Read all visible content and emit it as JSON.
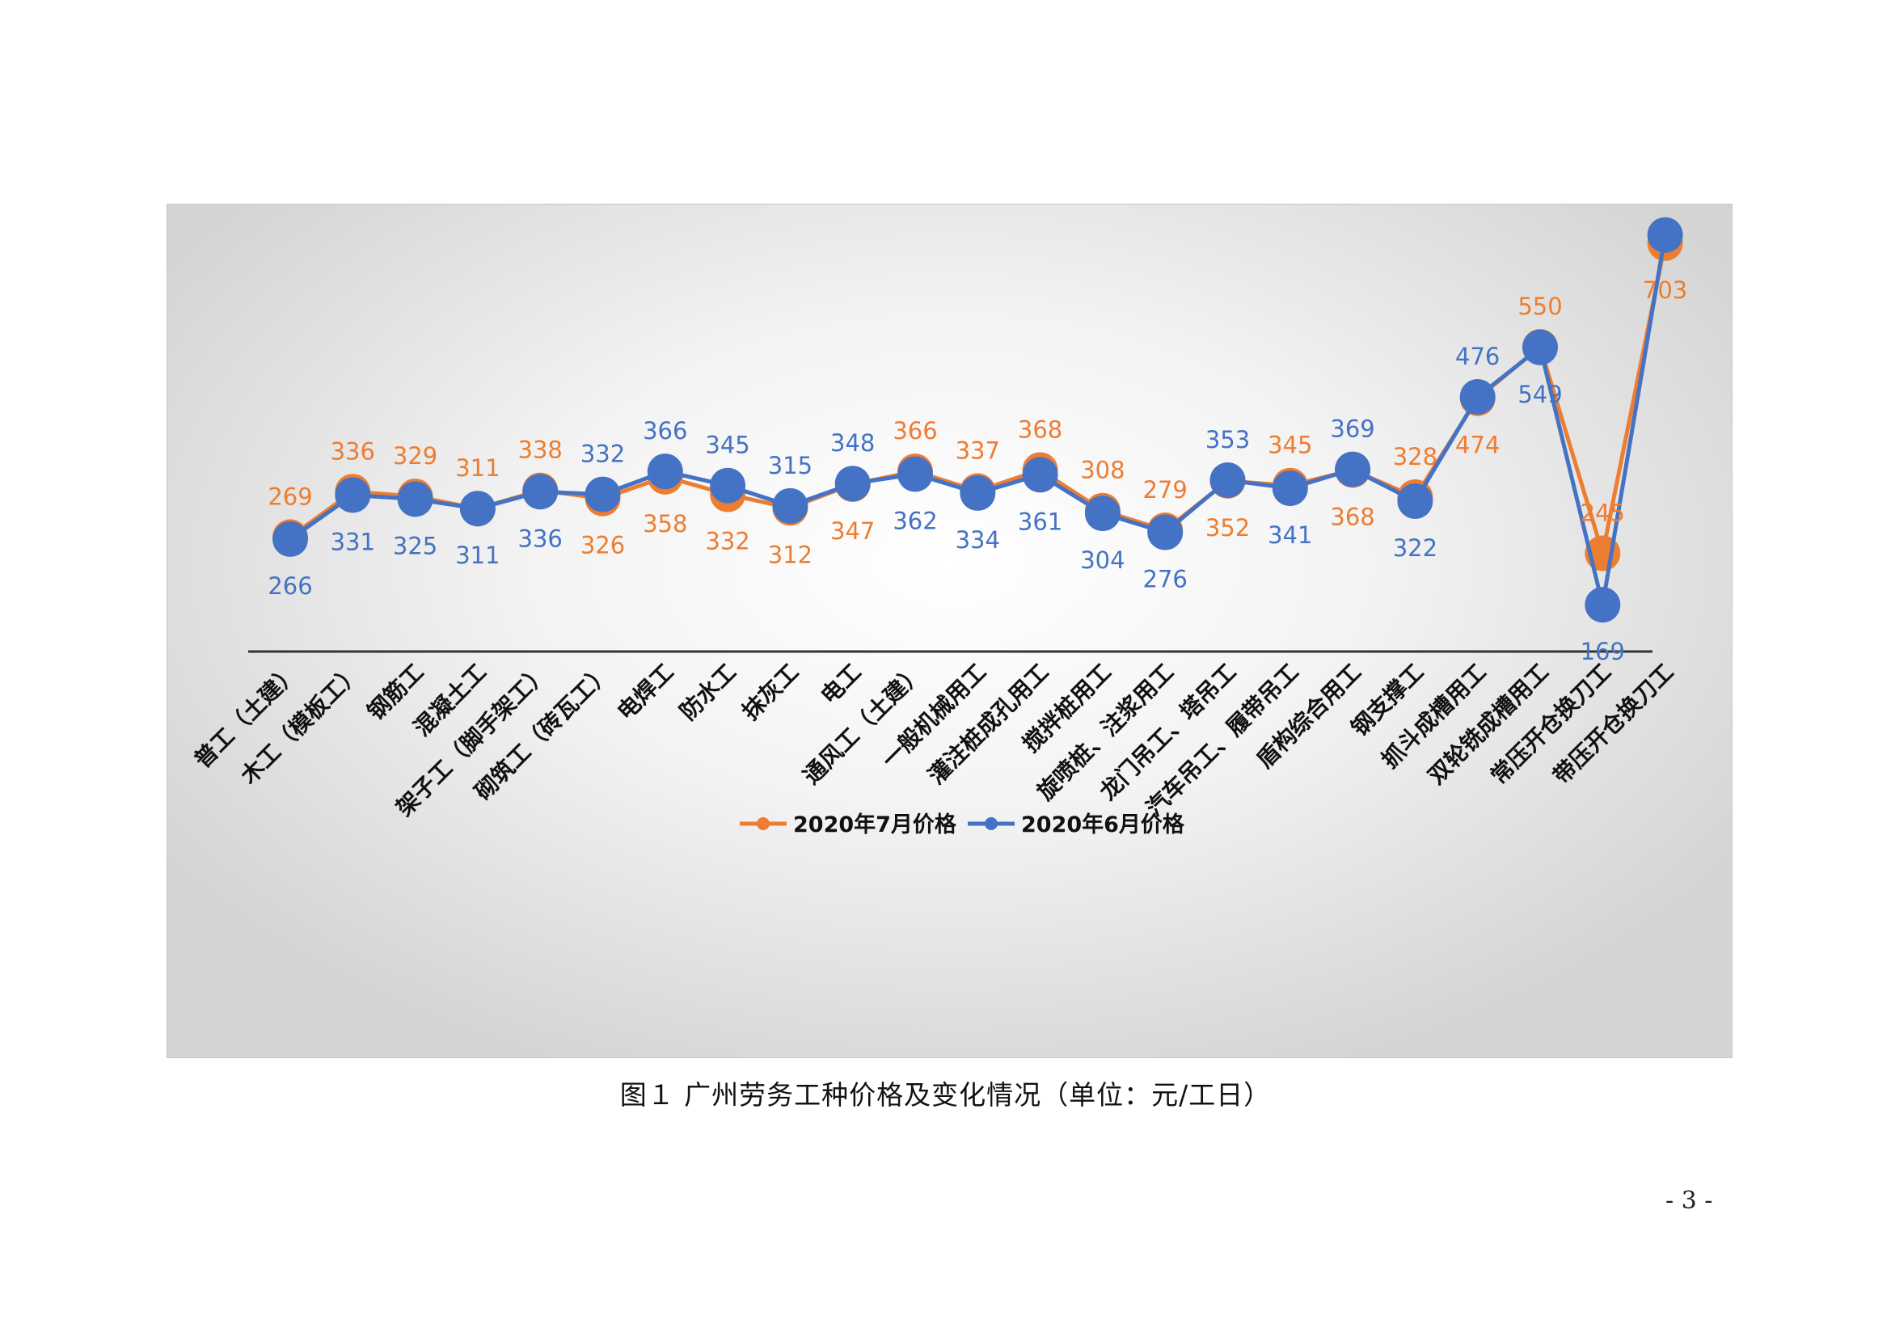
{
  "caption": "图１  广州劳务工种价格及变化情况（单位：元/工日）",
  "page_number": "- 3 -",
  "chart_data": {
    "type": "line",
    "title": "",
    "xlabel": "",
    "ylabel": "",
    "ylim": [
      100,
      760
    ],
    "grid": false,
    "legend_position": "bottom",
    "categories": [
      "普工（土建）",
      "木工（模板工）",
      "钢筋工",
      "混凝土工",
      "架子工（脚手架工）",
      "砌筑工（砖瓦工）",
      "电焊工",
      "防水工",
      "抹灰工",
      "电工",
      "通风工（土建）",
      "一般机械用工",
      "灌注桩成孔用工",
      "搅拌桩用工",
      "旋喷桩、注浆用工",
      "龙门吊工、塔吊工",
      "汽车吊工、履带吊工",
      "盾构综合用工",
      "钢支撑工",
      "抓斗成槽用工",
      "双轮铣成槽用工",
      "常压开仓换刀工",
      "带压开仓换刀工"
    ],
    "series": [
      {
        "name": "2020年7月价格",
        "color": "#ED7D31",
        "values": [
          269,
          336,
          329,
          311,
          338,
          326,
          358,
          332,
          312,
          347,
          366,
          337,
          368,
          308,
          279,
          352,
          345,
          368,
          328,
          474,
          550,
          245,
          703
        ]
      },
      {
        "name": "2020年6月价格",
        "color": "#4472C4",
        "values": [
          266,
          331,
          325,
          311,
          336,
          332,
          366,
          345,
          315,
          348,
          362,
          334,
          361,
          304,
          276,
          353,
          341,
          369,
          322,
          476,
          549,
          169,
          715
        ]
      }
    ]
  }
}
